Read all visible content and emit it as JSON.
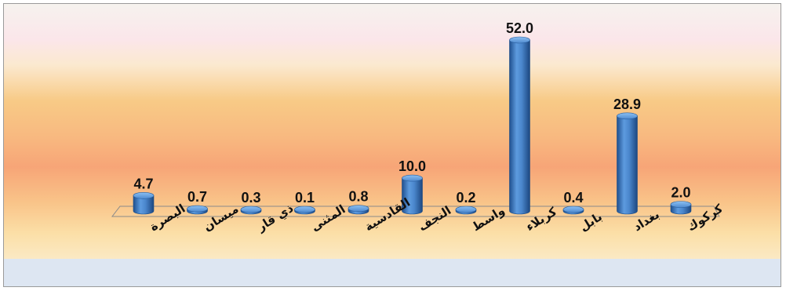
{
  "chart_data": {
    "type": "bar",
    "categories": [
      "البصرة",
      "ميسان",
      "ذي قار",
      "المثنى",
      "القادسية",
      "النجف",
      "واسط",
      "كربلاء",
      "بابل",
      "بغداد",
      "كركوك"
    ],
    "values": [
      4.7,
      0.7,
      0.3,
      0.1,
      0.8,
      10.0,
      0.2,
      52.0,
      0.4,
      28.9,
      2.0
    ],
    "data_labels": [
      "4.7",
      "0.7",
      "0.3",
      "0.1",
      "0.8",
      "10.0",
      "0.2",
      "52.0",
      "0.4",
      "28.9",
      "2.0"
    ],
    "ylim": [
      0,
      52
    ],
    "grid": false,
    "legend": "none",
    "bar_color": "#3f7fc4"
  }
}
